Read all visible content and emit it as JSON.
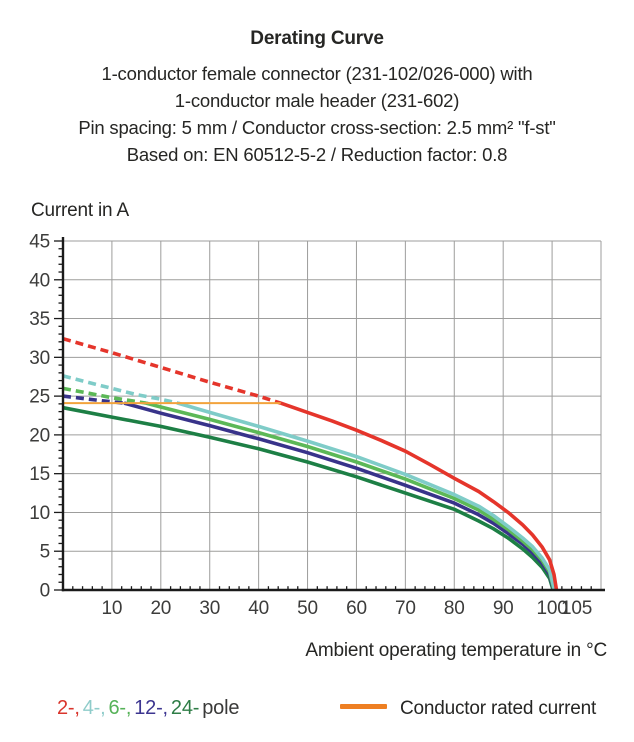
{
  "header": {
    "title": "Derating Curve",
    "subtitle_lines": [
      "1-conductor female connector (231-102/026-000) with",
      "1-conductor male header (231-602)",
      "Pin spacing: 5 mm / Conductor cross-section: 2.5 mm² \"f-st\"",
      "Based on: EN 60512-5-2 / Reduction factor: 0.8"
    ]
  },
  "chart_data": {
    "type": "line",
    "title": "Derating Curve",
    "xlabel": "Ambient operating temperature in °C",
    "ylabel": "Current in A",
    "x_range": [
      0,
      110
    ],
    "y_range": [
      0,
      45
    ],
    "grid": "on",
    "grid_color": "#9d9d9c",
    "axis_color": "#1a1a1a",
    "tick_label_color": "#3c3c3b",
    "x_gridlines": [
      10,
      20,
      30,
      40,
      50,
      60,
      70,
      80,
      90,
      100,
      110
    ],
    "y_gridlines": [
      5,
      10,
      15,
      20,
      25,
      30,
      35,
      40,
      45
    ],
    "x_tick_labels": [
      {
        "value": 10,
        "label": "10"
      },
      {
        "value": 20,
        "label": "20"
      },
      {
        "value": 30,
        "label": "30"
      },
      {
        "value": 40,
        "label": "40"
      },
      {
        "value": 50,
        "label": "50"
      },
      {
        "value": 60,
        "label": "60"
      },
      {
        "value": 70,
        "label": "70"
      },
      {
        "value": 80,
        "label": "80"
      },
      {
        "value": 90,
        "label": "90"
      },
      {
        "value": 100,
        "label": "100"
      },
      {
        "value": 105,
        "label": "105"
      }
    ],
    "y_tick_labels": [
      0,
      5,
      10,
      15,
      20,
      25,
      30,
      35,
      40,
      45
    ],
    "rated_current_A": 24.1,
    "series": [
      {
        "name": "24-pole",
        "color": "#1d7f45",
        "width": 3.6,
        "solid": [
          [
            0,
            23.5
          ],
          [
            10,
            22.3
          ],
          [
            20,
            21.1
          ],
          [
            30,
            19.7
          ],
          [
            40,
            18.2
          ],
          [
            50,
            16.5
          ],
          [
            60,
            14.6
          ],
          [
            70,
            12.5
          ],
          [
            80,
            10.4
          ],
          [
            85,
            8.9
          ],
          [
            88,
            7.9
          ],
          [
            91,
            6.7
          ],
          [
            94,
            5.3
          ],
          [
            96,
            4.2
          ],
          [
            98,
            2.9
          ],
          [
            99.5,
            1.5
          ],
          [
            100.2,
            0
          ]
        ]
      },
      {
        "name": "12-pole",
        "color": "#38338a",
        "width": 3.6,
        "dashed": [
          [
            0,
            25.0
          ],
          [
            4,
            24.7
          ],
          [
            8,
            24.4
          ],
          [
            12.5,
            24.1
          ]
        ],
        "solid": [
          [
            12.5,
            24.1
          ],
          [
            20,
            22.8
          ],
          [
            30,
            21.2
          ],
          [
            40,
            19.5
          ],
          [
            50,
            17.7
          ],
          [
            60,
            15.7
          ],
          [
            70,
            13.5
          ],
          [
            80,
            11.2
          ],
          [
            85,
            9.7
          ],
          [
            88,
            8.6
          ],
          [
            91,
            7.3
          ],
          [
            94,
            5.9
          ],
          [
            96,
            4.8
          ],
          [
            98,
            3.4
          ],
          [
            99.5,
            2.0
          ],
          [
            100.3,
            0
          ]
        ]
      },
      {
        "name": "6-pole",
        "color": "#5cb857",
        "width": 3.6,
        "dashed": [
          [
            0,
            26.0
          ],
          [
            5,
            25.4
          ],
          [
            10,
            24.8
          ],
          [
            17,
            24.1
          ]
        ],
        "solid": [
          [
            17,
            24.1
          ],
          [
            20,
            23.6
          ],
          [
            30,
            22.0
          ],
          [
            40,
            20.3
          ],
          [
            50,
            18.5
          ],
          [
            60,
            16.5
          ],
          [
            70,
            14.3
          ],
          [
            80,
            11.8
          ],
          [
            85,
            10.3
          ],
          [
            88,
            9.1
          ],
          [
            91,
            7.8
          ],
          [
            94,
            6.3
          ],
          [
            96,
            5.2
          ],
          [
            98,
            3.8
          ],
          [
            99.5,
            2.3
          ],
          [
            100.4,
            0
          ]
        ]
      },
      {
        "name": "4-pole",
        "color": "#7fccc8",
        "width": 3.6,
        "dashed": [
          [
            0,
            27.6
          ],
          [
            5,
            26.8
          ],
          [
            10,
            26.0
          ],
          [
            15,
            25.2
          ],
          [
            20,
            24.6
          ],
          [
            23.5,
            24.1
          ]
        ],
        "solid": [
          [
            23.5,
            24.1
          ],
          [
            30,
            22.9
          ],
          [
            40,
            21.1
          ],
          [
            50,
            19.2
          ],
          [
            60,
            17.2
          ],
          [
            70,
            14.9
          ],
          [
            80,
            12.3
          ],
          [
            85,
            10.8
          ],
          [
            88,
            9.6
          ],
          [
            91,
            8.2
          ],
          [
            94,
            6.7
          ],
          [
            96,
            5.6
          ],
          [
            98,
            4.1
          ],
          [
            99.5,
            2.6
          ],
          [
            100.5,
            0
          ]
        ]
      },
      {
        "name": "2-pole",
        "color": "#e5352b",
        "width": 3.6,
        "dashed": [
          [
            0,
            32.4
          ],
          [
            10,
            30.6
          ],
          [
            20,
            28.7
          ],
          [
            30,
            26.8
          ],
          [
            40,
            25.0
          ],
          [
            44.5,
            24.1
          ]
        ],
        "solid": [
          [
            44.5,
            24.1
          ],
          [
            50,
            22.9
          ],
          [
            55,
            21.8
          ],
          [
            60,
            20.6
          ],
          [
            65,
            19.3
          ],
          [
            70,
            17.9
          ],
          [
            75,
            16.2
          ],
          [
            80,
            14.4
          ],
          [
            85,
            12.7
          ],
          [
            88,
            11.4
          ],
          [
            91,
            10.0
          ],
          [
            94,
            8.4
          ],
          [
            96,
            7.1
          ],
          [
            98,
            5.5
          ],
          [
            99.5,
            3.9
          ],
          [
            100.4,
            2.0
          ],
          [
            100.9,
            0
          ]
        ]
      },
      {
        "name": "Conductor rated current",
        "color": "#f2a33c",
        "width": 2,
        "solid": [
          [
            0,
            24.1
          ],
          [
            44.5,
            24.1
          ]
        ]
      }
    ]
  },
  "legend": {
    "pole_parts": [
      {
        "text": "2-,",
        "color": "#d9352c"
      },
      {
        "text": "4-,",
        "color": "#8fccca"
      },
      {
        "text": "6-,",
        "color": "#56b258"
      },
      {
        "text": "12-,",
        "color": "#3c3590"
      },
      {
        "text": "24-",
        "color": "#2e7d46"
      }
    ],
    "pole_suffix": "pole",
    "rated_label": "Conductor rated current",
    "rated_color": "#ee7f22"
  }
}
